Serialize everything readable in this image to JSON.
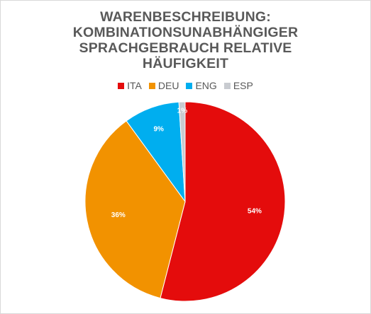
{
  "chart_data": {
    "type": "pie",
    "title_lines": [
      "WARENBESCHREIBUNG:",
      "KOMBINATIONSUNABHÄNGIGER",
      "SPRACHGEBRAUCH RELATIVE",
      "HÄUFIGKEIT"
    ],
    "legend_position": "top",
    "slices": [
      {
        "name": "ITA",
        "value": 54,
        "label": "54%",
        "color": "#e40c0c"
      },
      {
        "name": "DEU",
        "value": 36,
        "label": "36%",
        "color": "#f29200"
      },
      {
        "name": "ENG",
        "value": 9,
        "label": "9%",
        "color": "#00aeef"
      },
      {
        "name": "ESP",
        "value": 1,
        "label": "1%",
        "color": "#c8cbd0"
      }
    ]
  }
}
